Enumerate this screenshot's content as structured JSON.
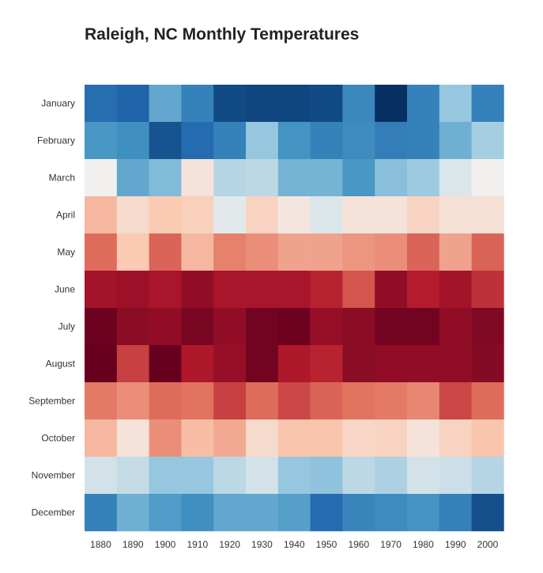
{
  "chart_data": {
    "type": "heatmap",
    "title": "Raleigh, NC Monthly Temperatures",
    "x_categories": [
      "1880",
      "1890",
      "1900",
      "1910",
      "1920",
      "1930",
      "1940",
      "1950",
      "1960",
      "1970",
      "1980",
      "1990",
      "2000"
    ],
    "y_categories": [
      "January",
      "February",
      "March",
      "April",
      "May",
      "June",
      "July",
      "August",
      "September",
      "October",
      "November",
      "December"
    ],
    "colormap": "RdBu reversed (blue = cold, red = hot)",
    "values": [
      [
        0.15,
        0.12,
        0.3,
        0.2,
        0.06,
        0.05,
        0.05,
        0.06,
        0.22,
        0.0,
        0.2,
        0.38,
        0.2
      ],
      [
        0.26,
        0.24,
        0.08,
        0.14,
        0.2,
        0.38,
        0.25,
        0.2,
        0.23,
        0.19,
        0.2,
        0.32,
        0.4
      ],
      [
        0.5,
        0.3,
        0.35,
        0.54,
        0.42,
        0.43,
        0.33,
        0.33,
        0.26,
        0.36,
        0.39,
        0.47,
        0.5
      ],
      [
        0.65,
        0.57,
        0.62,
        0.6,
        0.48,
        0.59,
        0.53,
        0.47,
        0.54,
        0.54,
        0.59,
        0.55,
        0.55
      ],
      [
        0.76,
        0.62,
        0.77,
        0.65,
        0.73,
        0.71,
        0.68,
        0.68,
        0.7,
        0.71,
        0.77,
        0.68,
        0.77
      ],
      [
        0.9,
        0.91,
        0.89,
        0.93,
        0.89,
        0.89,
        0.89,
        0.86,
        0.79,
        0.93,
        0.87,
        0.9,
        0.84
      ],
      [
        0.99,
        0.94,
        0.93,
        0.97,
        0.93,
        0.98,
        0.99,
        0.92,
        0.94,
        0.98,
        0.98,
        0.93,
        0.96
      ],
      [
        1.0,
        0.82,
        1.0,
        0.88,
        0.92,
        0.98,
        0.88,
        0.86,
        0.94,
        0.93,
        0.93,
        0.93,
        0.95
      ],
      [
        0.74,
        0.71,
        0.76,
        0.75,
        0.82,
        0.76,
        0.81,
        0.77,
        0.75,
        0.74,
        0.72,
        0.81,
        0.76
      ],
      [
        0.65,
        0.54,
        0.71,
        0.64,
        0.67,
        0.57,
        0.63,
        0.63,
        0.58,
        0.59,
        0.54,
        0.59,
        0.63
      ],
      [
        0.46,
        0.44,
        0.38,
        0.38,
        0.43,
        0.46,
        0.38,
        0.37,
        0.43,
        0.41,
        0.46,
        0.45,
        0.42
      ],
      [
        0.2,
        0.32,
        0.27,
        0.24,
        0.3,
        0.3,
        0.28,
        0.14,
        0.21,
        0.23,
        0.25,
        0.2,
        0.07
      ]
    ]
  }
}
